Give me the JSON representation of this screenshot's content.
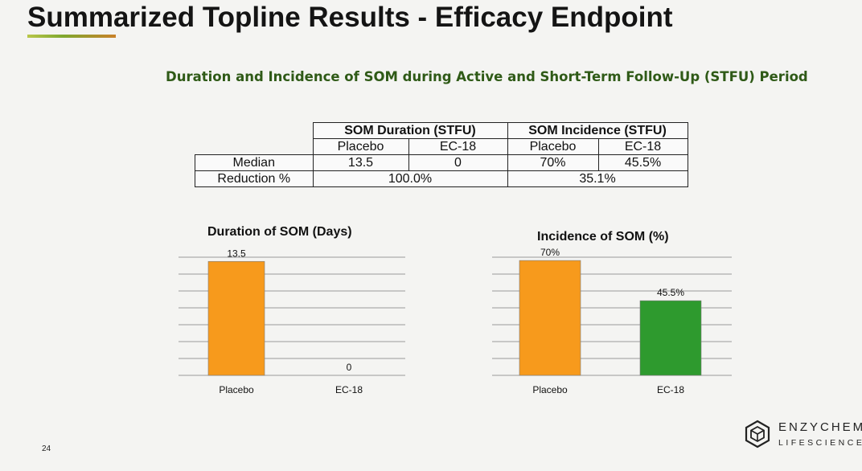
{
  "slide": {
    "title": "Summarized Topline Results - Efficacy Endpoint",
    "subtitle": "Duration and Incidence of SOM during Active and Short-Term Follow-Up (STFU) Period",
    "page_number": "24"
  },
  "table": {
    "group_headers": [
      "SOM Duration (STFU)",
      "SOM Incidence (STFU)"
    ],
    "sub_headers": [
      "Placebo",
      "EC-18",
      "Placebo",
      "EC-18"
    ],
    "rows": [
      {
        "label": "Median",
        "cells": [
          "13.5",
          "0",
          "70%",
          "45.5%"
        ]
      },
      {
        "label": "Reduction %",
        "cells": [
          "100.0%",
          "35.1%"
        ]
      }
    ]
  },
  "chart_data": [
    {
      "type": "bar",
      "title": "Duration of SOM (Days)",
      "categories": [
        "Placebo",
        "EC-18"
      ],
      "values": [
        13.5,
        0
      ],
      "data_labels": [
        "13.5",
        "0"
      ],
      "colors": [
        "#f79a1c",
        "#f79a1c"
      ],
      "ylim": [
        0,
        14
      ],
      "grid": true,
      "xlabel": "",
      "ylabel": ""
    },
    {
      "type": "bar",
      "title": "Incidence of SOM (%)",
      "categories": [
        "Placebo",
        "EC-18"
      ],
      "values": [
        70,
        45.5
      ],
      "data_labels": [
        "70%",
        "45.5%"
      ],
      "colors": [
        "#f79a1c",
        "#2e9a2e"
      ],
      "ylim": [
        0,
        72
      ],
      "grid": true,
      "xlabel": "",
      "ylabel": ""
    }
  ],
  "logo": {
    "name": "ENZYCHEM",
    "sub": "LIFESCIENCES",
    "icon": "hexagon-cube-logo-icon"
  }
}
